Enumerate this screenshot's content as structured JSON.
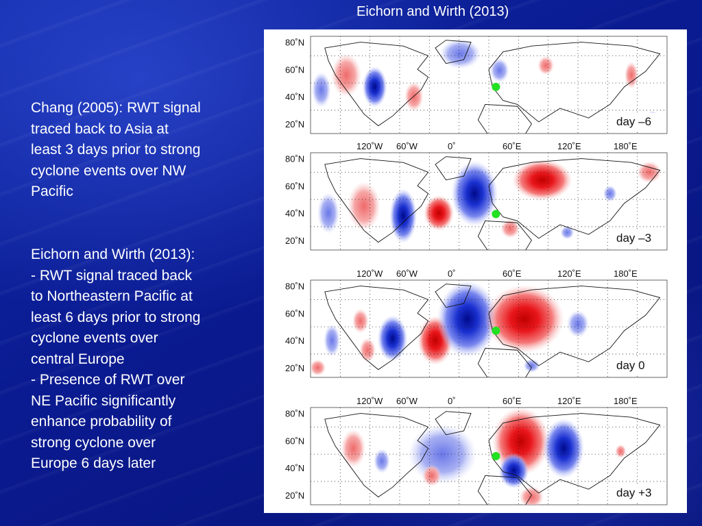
{
  "figure_title": "Eichorn and Wirth (2013)",
  "left_text": {
    "block1_lines": [
      "Chang (2005): RWT signal",
      "traced back to Asia at",
      "least 3 days prior to strong",
      "cyclone events over NW",
      "Pacific"
    ],
    "block2_lines": [
      "Eichorn and Wirth (2013):",
      "- RWT signal traced back",
      "to Northeastern Pacific at",
      "least 6 days prior to strong",
      "cyclone events over",
      "central Europe",
      "- Presence of RWT over",
      "NE Pacific significantly",
      "enhance probability of",
      "strong cyclone over",
      "Europe 6 days later"
    ]
  },
  "panels": [
    {
      "day_label": "day –6",
      "show_top_lon_labels": false
    },
    {
      "day_label": "day –3",
      "show_top_lon_labels": true
    },
    {
      "day_label": "day  0",
      "show_top_lon_labels": true
    },
    {
      "day_label": "day +3",
      "show_top_lon_labels": true
    }
  ],
  "lon_labels": [
    "120˚W",
    "60˚W",
    "0˚",
    "60˚E",
    "120˚E",
    "180˚E"
  ],
  "lat_labels": [
    "80˚N",
    "60˚N",
    "40˚N",
    "20˚N"
  ],
  "colors": {
    "positive_anomaly": "#e0161b",
    "negative_anomaly": "#1428c8",
    "marker": "#22e022"
  }
}
